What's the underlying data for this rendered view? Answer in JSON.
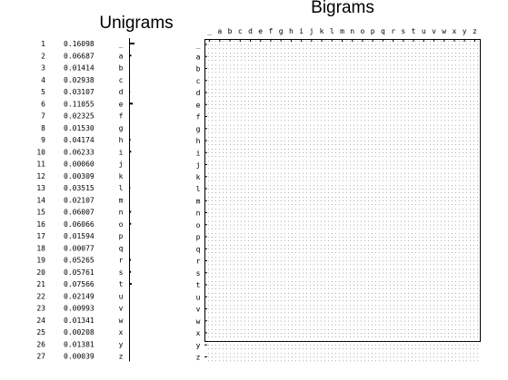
{
  "chart_data": [
    {
      "type": "bar",
      "orientation": "horizontal",
      "title": "Unigrams",
      "index": [
        1,
        2,
        3,
        4,
        5,
        6,
        7,
        8,
        9,
        10,
        11,
        12,
        13,
        14,
        15,
        16,
        17,
        18,
        19,
        20,
        21,
        22,
        23,
        24,
        25,
        26,
        27
      ],
      "categories": [
        "_",
        "a",
        "b",
        "c",
        "d",
        "e",
        "f",
        "g",
        "h",
        "i",
        "j",
        "k",
        "l",
        "m",
        "n",
        "o",
        "p",
        "q",
        "r",
        "s",
        "t",
        "u",
        "v",
        "w",
        "x",
        "y",
        "z"
      ],
      "values": [
        "0.16098",
        "0.06687",
        "0.01414",
        "0.02938",
        "0.03107",
        "0.11055",
        "0.02325",
        "0.01530",
        "0.04174",
        "0.06233",
        "0.00060",
        "0.00309",
        "0.03515",
        "0.02107",
        "0.06007",
        "0.06066",
        "0.01594",
        "0.00077",
        "0.05265",
        "0.05761",
        "0.07566",
        "0.02149",
        "0.00993",
        "0.01341",
        "0.00208",
        "0.01381",
        "0.00039"
      ]
    },
    {
      "type": "heatmap",
      "title": "Bigrams",
      "x_categories": [
        "_",
        "a",
        "b",
        "c",
        "d",
        "e",
        "f",
        "g",
        "h",
        "i",
        "j",
        "k",
        "l",
        "m",
        "n",
        "o",
        "p",
        "q",
        "r",
        "s",
        "t",
        "u",
        "v",
        "w",
        "x",
        "y",
        "z"
      ],
      "y_categories": [
        "_",
        "a",
        "b",
        "c",
        "d",
        "e",
        "f",
        "g",
        "h",
        "i",
        "j",
        "k",
        "l",
        "m",
        "n",
        "o",
        "p",
        "q",
        "r",
        "s",
        "t",
        "u",
        "v",
        "w",
        "x",
        "y",
        "z"
      ]
    }
  ]
}
